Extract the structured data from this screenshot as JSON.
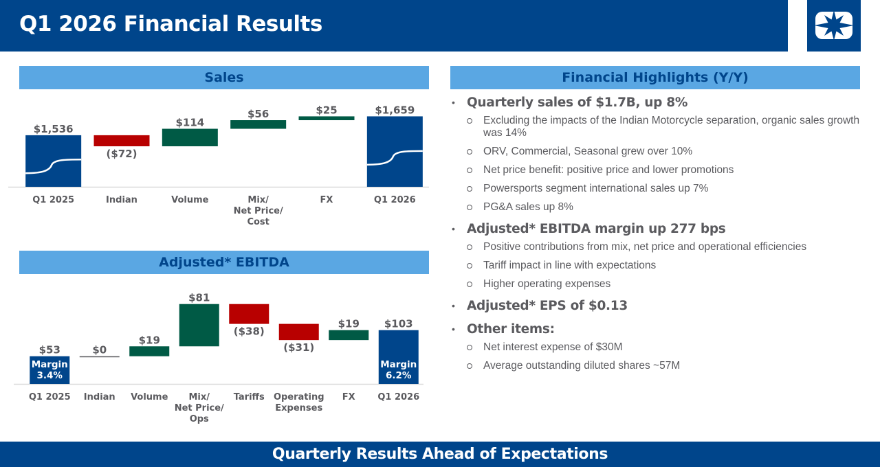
{
  "header": {
    "title": "Q1 2026 Financial Results",
    "logo_icon": "star-logo-icon",
    "brand_color": "#00458b"
  },
  "sections": {
    "sales": "Sales",
    "ebitda": "Adjusted* EBITDA",
    "highlights": "Financial Highlights (Y/Y)"
  },
  "colors": {
    "base": "#00458b",
    "positive": "#005a45",
    "negative": "#b80000",
    "header_band": "#5aa7e3",
    "text": "#5a5a5e"
  },
  "chart_data": [
    {
      "type": "bar",
      "subtype": "waterfall",
      "title": "Sales",
      "units": "$M",
      "categories": [
        "Q1 2025",
        "Indian",
        "Volume",
        "Mix/\nNet Price/\nCost",
        "FX",
        "Q1 2026"
      ],
      "values": [
        1536,
        -72,
        114,
        56,
        25,
        1659
      ],
      "kinds": [
        "total",
        "delta",
        "delta",
        "delta",
        "delta",
        "total"
      ],
      "labels": [
        "$1,536",
        "($72)",
        "$114",
        "$56",
        "$25",
        "$1,659"
      ],
      "axis_floor": 1200,
      "ylim": [
        1200,
        1700
      ],
      "grid": false
    },
    {
      "type": "bar",
      "subtype": "waterfall",
      "title": "Adjusted* EBITDA",
      "units": "$M",
      "categories": [
        "Q1 2025",
        "Indian",
        "Volume",
        "Mix/\nNet Price/\nOps",
        "Tariffs",
        "Operating\nExpenses",
        "FX",
        "Q1 2026"
      ],
      "values": [
        53,
        0,
        19,
        81,
        -38,
        -31,
        19,
        103
      ],
      "kinds": [
        "total",
        "delta",
        "delta",
        "delta",
        "delta",
        "delta",
        "delta",
        "total"
      ],
      "labels": [
        "$53",
        "$0",
        "$19",
        "$81",
        "($38)",
        "($31)",
        "$19",
        "$103"
      ],
      "inner_labels": [
        "Margin\n3.4%",
        "",
        "",
        "",
        "",
        "",
        "",
        "Margin\n6.2%"
      ],
      "margins_pct": [
        3.4,
        null,
        null,
        null,
        null,
        null,
        null,
        6.2
      ],
      "ylim": [
        0,
        160
      ],
      "grid": false
    }
  ],
  "highlights": [
    {
      "head": "Quarterly sales of $1.7B, up 8%",
      "subs": [
        "Excluding the impacts of the Indian Motorcycle separation, organic sales growth was 14%",
        "ORV, Commercial, Seasonal grew over 10%",
        "Net price benefit: positive price and lower promotions",
        "Powersports segment international sales up 7%",
        "PG&A sales up 8%"
      ]
    },
    {
      "head": "Adjusted* EBITDA margin up 277 bps",
      "subs": [
        "Positive contributions from mix, net price and operational efficiencies",
        "Tariff impact in line with expectations",
        "Higher operating expenses"
      ]
    },
    {
      "head": "Adjusted* EPS of $0.13",
      "subs": []
    },
    {
      "head": "Other items:",
      "subs": [
        "Net interest expense of $30M",
        "Average outstanding diluted shares ~57M"
      ]
    }
  ],
  "footer": {
    "text": "Quarterly Results Ahead of Expectations"
  }
}
